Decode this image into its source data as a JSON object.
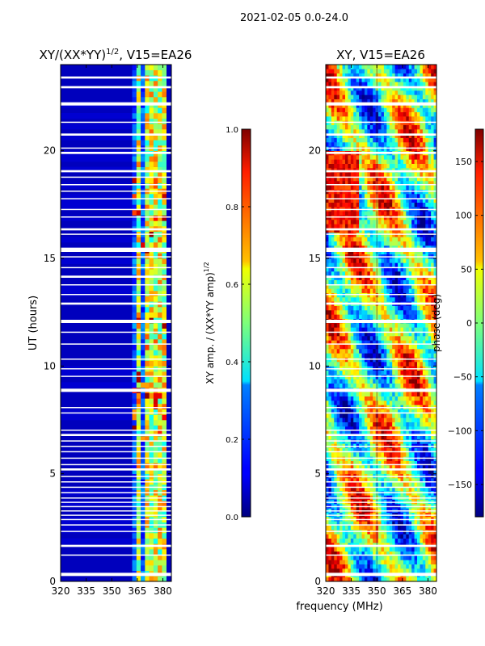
{
  "figure": {
    "suptitle": "2021-02-05 0.0-24.0",
    "shared_xlabel": "frequency (MHz)"
  },
  "chart_data": [
    {
      "type": "heatmap",
      "title_main": "XY/(XX*YY)",
      "title_exp": "1/2",
      "title_tail": ", V15=EA26",
      "xlabel": "",
      "ylabel": "UT (hours)",
      "xlim": [
        320,
        385
      ],
      "ylim": [
        0,
        24
      ],
      "xticks": [
        320,
        335,
        350,
        365,
        380
      ],
      "yticks": [
        0,
        5,
        10,
        15,
        20
      ],
      "xtick_labels": [
        "320",
        "335",
        "350",
        "365",
        "380"
      ],
      "ytick_labels": [
        "0",
        "5",
        "10",
        "15",
        "20"
      ],
      "background_value": 0.06,
      "active_band_mhz": [
        362,
        382
      ],
      "bright_channels_mhz": [
        364,
        369,
        373,
        377,
        381
      ],
      "colorbar": {
        "label_main": "XY amp. / (XX*YY amp)",
        "label_exp": "1/2",
        "range": [
          0.0,
          1.0
        ],
        "ticks": [
          0.0,
          0.2,
          0.4,
          0.6,
          0.8,
          1.0
        ],
        "tick_labels": [
          "0.0",
          "0.2",
          "0.4",
          "0.6",
          "0.8",
          "1.0"
        ],
        "colormap": "jet"
      }
    },
    {
      "type": "heatmap",
      "title_main": "XY, V15=EA26",
      "xlabel": "frequency (MHz)",
      "ylabel": "",
      "xlim": [
        320,
        385
      ],
      "ylim": [
        0,
        24
      ],
      "xticks": [
        320,
        335,
        350,
        365,
        380
      ],
      "yticks": [
        0,
        5,
        10,
        15,
        20
      ],
      "xtick_labels": [
        "320",
        "335",
        "350",
        "365",
        "380"
      ],
      "ytick_labels": [
        "0",
        "5",
        "10",
        "15",
        "20"
      ],
      "value_range_deg": [
        -180,
        180
      ],
      "colorbar": {
        "label": "phase (deg)",
        "range": [
          -180,
          180
        ],
        "ticks": [
          -150,
          -100,
          -50,
          0,
          50,
          100,
          150
        ],
        "tick_labels": [
          "−150",
          "−100",
          "−50",
          "0",
          "50",
          "100",
          "150"
        ],
        "colormap": "jet"
      }
    }
  ],
  "flagged_gaps_hours": [
    [
      0.25,
      0.4
    ],
    [
      1.2,
      1.25
    ],
    [
      1.6,
      1.7
    ],
    [
      2.3,
      2.35
    ],
    [
      2.6,
      2.65
    ],
    [
      2.85,
      2.9
    ],
    [
      3.05,
      3.1
    ],
    [
      3.25,
      3.3
    ],
    [
      3.45,
      3.5
    ],
    [
      3.65,
      3.7
    ],
    [
      3.85,
      3.9
    ],
    [
      4.1,
      4.15
    ],
    [
      4.35,
      4.4
    ],
    [
      4.6,
      4.65
    ],
    [
      4.85,
      4.9
    ],
    [
      5.15,
      5.25
    ],
    [
      5.4,
      5.45
    ],
    [
      5.7,
      5.75
    ],
    [
      6.0,
      6.05
    ],
    [
      6.25,
      6.3
    ],
    [
      6.5,
      6.55
    ],
    [
      6.75,
      6.85
    ],
    [
      7.0,
      7.05
    ],
    [
      7.8,
      7.85
    ],
    [
      8.05,
      8.1
    ],
    [
      8.8,
      8.95
    ],
    [
      9.5,
      9.55
    ],
    [
      9.85,
      9.9
    ],
    [
      10.3,
      10.35
    ],
    [
      11.0,
      11.05
    ],
    [
      11.55,
      11.6
    ],
    [
      12.0,
      12.15
    ],
    [
      12.85,
      12.95
    ],
    [
      13.3,
      13.35
    ],
    [
      13.75,
      13.8
    ],
    [
      14.1,
      14.2
    ],
    [
      14.55,
      14.6
    ],
    [
      15.05,
      15.1
    ],
    [
      15.3,
      15.5
    ],
    [
      16.1,
      16.15
    ],
    [
      16.3,
      16.4
    ],
    [
      16.9,
      16.95
    ],
    [
      17.25,
      17.3
    ],
    [
      17.75,
      17.8
    ],
    [
      18.1,
      18.15
    ],
    [
      18.4,
      18.45
    ],
    [
      18.75,
      18.8
    ],
    [
      19.0,
      19.1
    ],
    [
      19.85,
      19.95
    ],
    [
      20.1,
      20.15
    ],
    [
      20.7,
      20.8
    ],
    [
      21.3,
      21.35
    ],
    [
      22.1,
      22.25
    ],
    [
      22.9,
      23.0
    ],
    [
      23.35,
      23.45
    ]
  ]
}
